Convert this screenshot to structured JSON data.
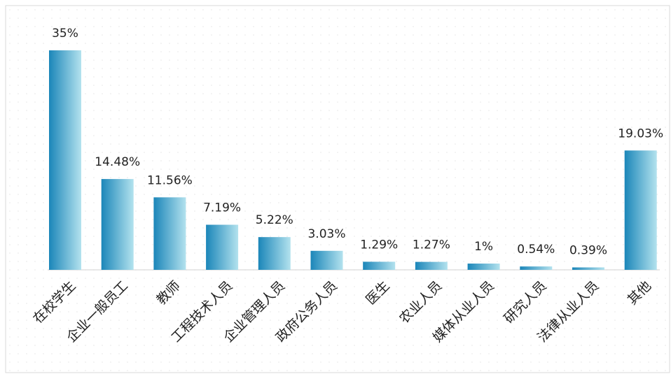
{
  "chart_data": {
    "type": "bar",
    "categories": [
      "在校学生",
      "企业一般员工",
      "教师",
      "工程技术人员",
      "企业管理人员",
      "政府公务人员",
      "医生",
      "农业人员",
      "媒体从业人员",
      "研究人员",
      "法律从业人员",
      "其他"
    ],
    "values": [
      35,
      14.48,
      11.56,
      7.19,
      5.22,
      3.03,
      1.29,
      1.27,
      1,
      0.54,
      0.39,
      19.03
    ],
    "value_labels": [
      "35%",
      "14.48%",
      "11.56%",
      "7.19%",
      "5.22%",
      "3.03%",
      "1.29%",
      "1.27%",
      "1%",
      "0.54%",
      "0.39%",
      "19.03%"
    ],
    "color": "#1b86b9"
  }
}
